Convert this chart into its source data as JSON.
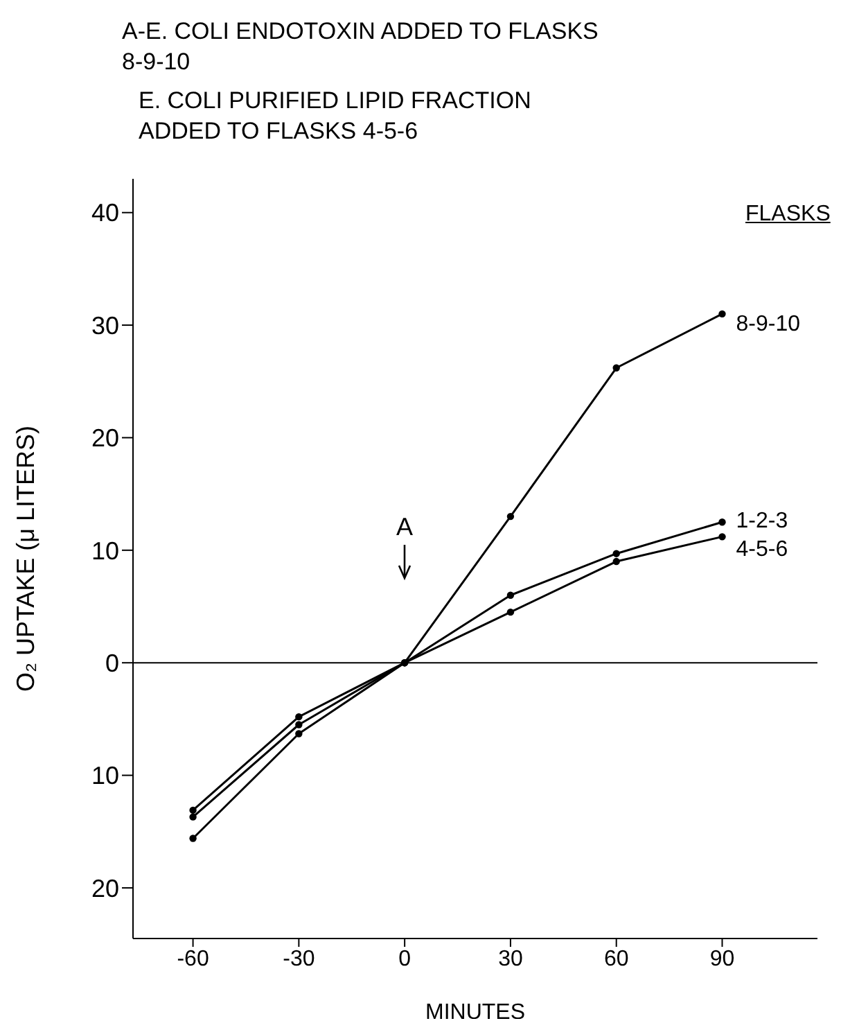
{
  "chart_data": {
    "type": "line",
    "title": "A-E. COLI ENDOTOXIN ADDED TO FLASKS 8-9-10",
    "subtitle": "E. COLI PURIFIED LIPID FRACTION ADDED TO FLASKS 4-5-6",
    "xlabel": "MINUTES",
    "ylabel": "O₂ UPTAKE (μ LITERS)",
    "legend_title": "FLASKS",
    "x": [
      -60,
      -30,
      0,
      30,
      60,
      90
    ],
    "series": [
      {
        "name": "8-9-10",
        "color": "#000000",
        "values": [
          -15.6,
          -6.3,
          0,
          13,
          26.2,
          31
        ]
      },
      {
        "name": "1-2-3",
        "color": "#000000",
        "values": [
          -13.1,
          -4.8,
          0,
          6,
          9.7,
          12.5
        ]
      },
      {
        "name": "4-5-6",
        "color": "#000000",
        "values": [
          -13.7,
          -5.5,
          0,
          4.5,
          9,
          11.2
        ]
      }
    ],
    "xlim": [
      -77,
      117
    ],
    "xticks": [
      -60,
      -30,
      0,
      30,
      60,
      90
    ],
    "ylim": [
      -24.5,
      43
    ],
    "yticks": [
      {
        "value": -20,
        "label": "20"
      },
      {
        "value": -10,
        "label": "10"
      },
      0,
      10,
      20,
      30,
      40
    ],
    "ref_lines": [
      {
        "axis": "y",
        "value": 0,
        "color": "#000000"
      }
    ],
    "annotations": [
      "A"
    ],
    "marker": "circle",
    "line_style": "solid",
    "grid": false,
    "legend": false
  }
}
